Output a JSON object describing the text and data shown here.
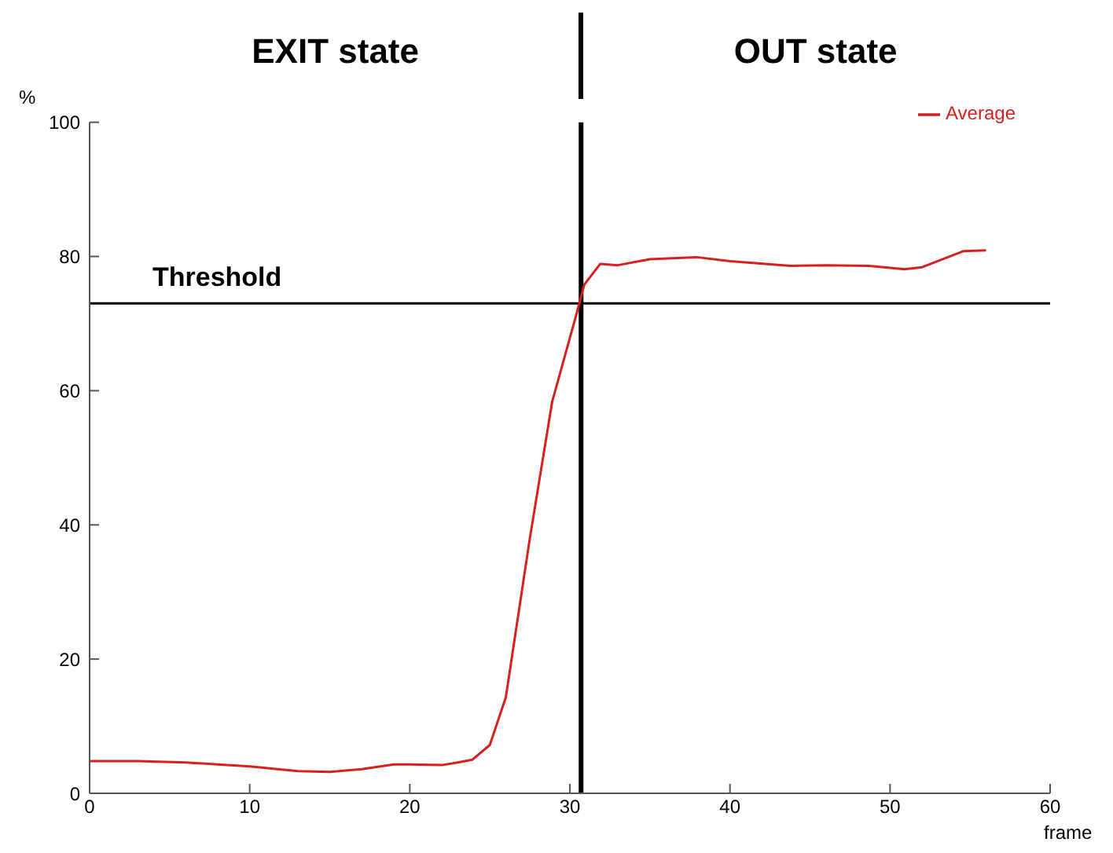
{
  "chart_data": {
    "type": "line",
    "annotations": [
      "EXIT state",
      "OUT state"
    ],
    "xlabel": "frame",
    "ylabel": "%",
    "x": [
      0,
      3,
      6,
      8,
      10,
      13,
      15,
      17,
      19,
      20,
      22,
      23,
      23.9,
      25,
      26,
      27.5,
      28.9,
      30.4,
      30.9,
      31.9,
      33,
      35,
      37.9,
      40,
      43.8,
      46,
      48.7,
      50.9,
      52,
      54.6,
      56
    ],
    "series": [
      {
        "name": "Average",
        "color": "#d62020",
        "values": [
          4.8,
          4.8,
          4.6,
          4.3,
          4.0,
          3.3,
          3.2,
          3.6,
          4.3,
          4.3,
          4.2,
          4.6,
          5.0,
          7.2,
          14.3,
          38,
          58.4,
          71.3,
          75.8,
          78.9,
          78.7,
          79.6,
          79.9,
          79.3,
          78.6,
          78.7,
          78.6,
          78.1,
          78.4,
          80.8,
          80.9
        ]
      }
    ],
    "xlim": [
      0,
      60
    ],
    "xticks": [
      0,
      10,
      20,
      30,
      40,
      50,
      60
    ],
    "ylim": [
      0,
      100
    ],
    "yticks": [
      0,
      20,
      40,
      60,
      80,
      100
    ],
    "ref_lines": [
      {
        "axis": "y",
        "value": 73,
        "label": "Threshold",
        "color": "#000000"
      },
      {
        "axis": "x",
        "value": 30.7,
        "label": null,
        "color": "#000000"
      }
    ],
    "grid": false,
    "legend": "top right"
  }
}
